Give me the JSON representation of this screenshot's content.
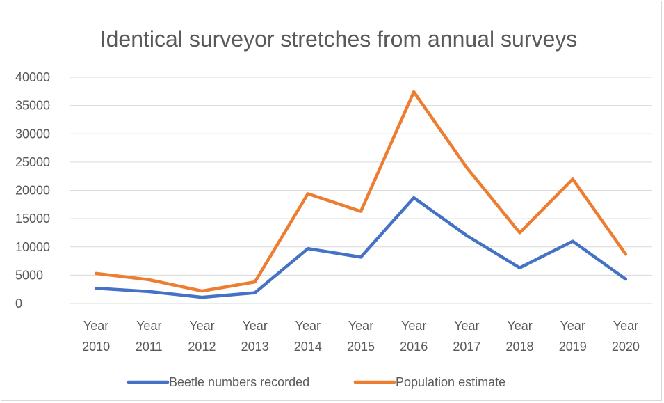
{
  "chart_data": {
    "type": "line",
    "title": "Identical surveyor stretches from annual surveys",
    "xlabel": "",
    "ylabel": "",
    "categories": [
      [
        "Year",
        "2010"
      ],
      [
        "Year",
        "2011"
      ],
      [
        "Year",
        "2012"
      ],
      [
        "Year",
        "2013"
      ],
      [
        "Year",
        "2014"
      ],
      [
        "Year",
        "2015"
      ],
      [
        "Year",
        "2016"
      ],
      [
        "Year",
        "2017"
      ],
      [
        "Year",
        "2018"
      ],
      [
        "Year",
        "2019"
      ],
      [
        "Year",
        "2020"
      ]
    ],
    "ylim": [
      0,
      40000
    ],
    "yticks": [
      0,
      5000,
      10000,
      15000,
      20000,
      25000,
      30000,
      35000,
      40000
    ],
    "grid": true,
    "legend_position": "bottom",
    "series": [
      {
        "name": "Beetle numbers recorded",
        "color": "#4472c4",
        "values": [
          2700,
          2100,
          1100,
          1900,
          9700,
          8200,
          18700,
          12000,
          6300,
          11000,
          4300
        ]
      },
      {
        "name": "Population estimate",
        "color": "#ed7d31",
        "values": [
          5300,
          4200,
          2200,
          3800,
          19400,
          16300,
          37400,
          24000,
          12500,
          22000,
          8700
        ]
      }
    ]
  }
}
